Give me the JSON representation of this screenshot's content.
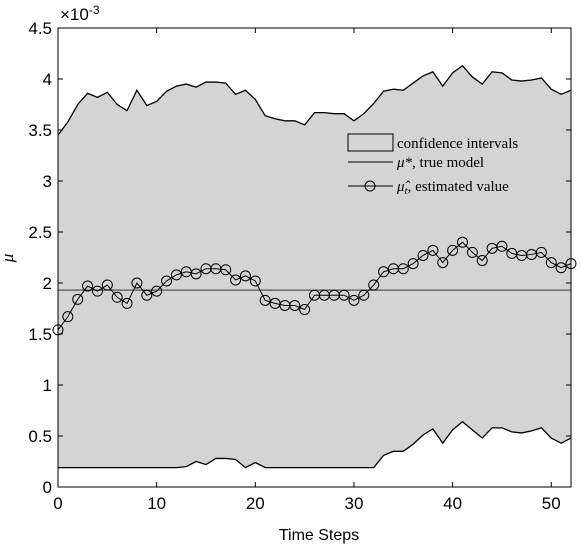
{
  "chart_data": {
    "type": "line",
    "xlabel": "Time Steps",
    "ylabel": "μ",
    "exponent_label": "×10",
    "exponent_power": "-3",
    "xlim": [
      0,
      52
    ],
    "ylim": [
      0,
      4.5
    ],
    "xticks": [
      0,
      10,
      20,
      30,
      40,
      50
    ],
    "yticks": [
      0,
      0.5,
      1,
      1.5,
      2,
      2.5,
      3,
      3.5,
      4,
      4.5
    ],
    "ytick_labels": [
      "0",
      "0.5",
      "1",
      "1.5",
      "2",
      "2.5",
      "3",
      "3.5",
      "4",
      "4.5"
    ],
    "grid": false,
    "legend_position": "top-right",
    "colors": {
      "band_fill": "#d4d4d4",
      "line": "#000000",
      "true_line": "#555555"
    },
    "legend": [
      {
        "key": "band",
        "label": "confidence intervals"
      },
      {
        "key": "true",
        "label_symbol": "μ*",
        "label_text": ", true model"
      },
      {
        "key": "estimate",
        "label_symbol": "μ̂",
        "label_sub": "t",
        "label_text": ", estimated value"
      }
    ],
    "true_value": 1.93,
    "upper": [
      3.45,
      3.58,
      3.75,
      3.86,
      3.82,
      3.87,
      3.75,
      3.69,
      3.89,
      3.74,
      3.78,
      3.88,
      3.93,
      3.95,
      3.92,
      3.97,
      3.97,
      3.96,
      3.85,
      3.89,
      3.8,
      3.64,
      3.61,
      3.59,
      3.59,
      3.55,
      3.67,
      3.67,
      3.66,
      3.66,
      3.59,
      3.66,
      3.76,
      3.88,
      3.9,
      3.89,
      3.96,
      4.03,
      4.07,
      3.93,
      4.06,
      4.13,
      4.02,
      3.95,
      4.07,
      4.06,
      3.99,
      3.98,
      3.99,
      4.01,
      3.9,
      3.85,
      3.89
    ],
    "lower": [
      0.19,
      0.19,
      0.19,
      0.19,
      0.19,
      0.19,
      0.19,
      0.19,
      0.19,
      0.19,
      0.19,
      0.19,
      0.19,
      0.2,
      0.25,
      0.22,
      0.28,
      0.28,
      0.27,
      0.19,
      0.24,
      0.19,
      0.19,
      0.19,
      0.19,
      0.19,
      0.19,
      0.19,
      0.19,
      0.19,
      0.19,
      0.19,
      0.19,
      0.31,
      0.35,
      0.35,
      0.42,
      0.51,
      0.57,
      0.43,
      0.56,
      0.64,
      0.56,
      0.48,
      0.58,
      0.58,
      0.54,
      0.53,
      0.55,
      0.58,
      0.48,
      0.43,
      0.48
    ],
    "estimate": [
      1.54,
      1.67,
      1.84,
      1.97,
      1.92,
      1.98,
      1.86,
      1.8,
      2.0,
      1.88,
      1.92,
      2.02,
      2.08,
      2.11,
      2.09,
      2.14,
      2.14,
      2.13,
      2.03,
      2.07,
      2.02,
      1.83,
      1.8,
      1.78,
      1.78,
      1.74,
      1.88,
      1.88,
      1.88,
      1.88,
      1.83,
      1.88,
      1.98,
      2.11,
      2.14,
      2.14,
      2.19,
      2.27,
      2.32,
      2.2,
      2.32,
      2.4,
      2.3,
      2.22,
      2.34,
      2.36,
      2.29,
      2.27,
      2.28,
      2.3,
      2.2,
      2.15,
      2.19
    ]
  }
}
